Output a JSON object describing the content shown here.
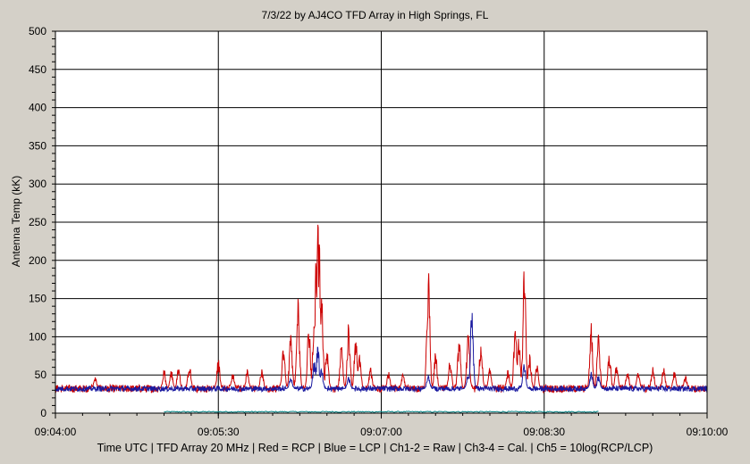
{
  "chart_data": {
    "type": "line",
    "title": "7/3/22  by  AJ4CO TFD Array  in  High Springs, FL",
    "xlabel": "Time UTC | TFD Array 20 MHz | Red = RCP | Blue = LCP | Ch1-2 = Raw | Ch3-4 = Cal. | Ch5 = 10log(RCP/LCP)",
    "ylabel": "Antenna Temp (kK)",
    "ylim": [
      0,
      500
    ],
    "yticks": [
      0,
      50,
      100,
      150,
      200,
      250,
      300,
      350,
      400,
      450,
      500
    ],
    "xlim_seconds": [
      0,
      360
    ],
    "xticks": [
      {
        "t": 0,
        "label": "09:04:00"
      },
      {
        "t": 90,
        "label": "09:05:30"
      },
      {
        "t": 180,
        "label": "09:07:00"
      },
      {
        "t": 270,
        "label": "09:08:30"
      },
      {
        "t": 360,
        "label": "09:10:00"
      }
    ],
    "grid": true,
    "colors": {
      "rcp": "#cc0000",
      "lcp": "#1a1aa0",
      "ch5": "#008080",
      "plot_bg": "#ffffff",
      "frame_bg": "#d4d0c8"
    },
    "baseline": {
      "rcp": 32,
      "lcp": 32
    },
    "series": [
      {
        "name": "Red = RCP",
        "spikes": [
          {
            "t": 22,
            "v": 48
          },
          {
            "t": 60,
            "v": 60
          },
          {
            "t": 64,
            "v": 58
          },
          {
            "t": 68,
            "v": 62
          },
          {
            "t": 74,
            "v": 66
          },
          {
            "t": 90,
            "v": 72
          },
          {
            "t": 98,
            "v": 54
          },
          {
            "t": 106,
            "v": 58
          },
          {
            "t": 114,
            "v": 60
          },
          {
            "t": 126,
            "v": 95
          },
          {
            "t": 130,
            "v": 108
          },
          {
            "t": 134,
            "v": 160
          },
          {
            "t": 140,
            "v": 120
          },
          {
            "t": 143,
            "v": 150
          },
          {
            "t": 144,
            "v": 210
          },
          {
            "t": 145,
            "v": 253
          },
          {
            "t": 146,
            "v": 230
          },
          {
            "t": 147,
            "v": 160
          },
          {
            "t": 150,
            "v": 90
          },
          {
            "t": 158,
            "v": 92
          },
          {
            "t": 162,
            "v": 120
          },
          {
            "t": 166,
            "v": 112
          },
          {
            "t": 168,
            "v": 80
          },
          {
            "t": 174,
            "v": 62
          },
          {
            "t": 184,
            "v": 55
          },
          {
            "t": 192,
            "v": 52
          },
          {
            "t": 206,
            "v": 197
          },
          {
            "t": 210,
            "v": 80
          },
          {
            "t": 218,
            "v": 72
          },
          {
            "t": 223,
            "v": 100
          },
          {
            "t": 228,
            "v": 110
          },
          {
            "t": 235,
            "v": 96
          },
          {
            "t": 240,
            "v": 60
          },
          {
            "t": 250,
            "v": 58
          },
          {
            "t": 254,
            "v": 120
          },
          {
            "t": 256,
            "v": 100
          },
          {
            "t": 259,
            "v": 192
          },
          {
            "t": 262,
            "v": 80
          },
          {
            "t": 266,
            "v": 64
          },
          {
            "t": 296,
            "v": 120
          },
          {
            "t": 300,
            "v": 110
          },
          {
            "t": 306,
            "v": 80
          },
          {
            "t": 310,
            "v": 64
          },
          {
            "t": 316,
            "v": 58
          },
          {
            "t": 322,
            "v": 55
          },
          {
            "t": 330,
            "v": 62
          },
          {
            "t": 336,
            "v": 60
          },
          {
            "t": 342,
            "v": 55
          },
          {
            "t": 348,
            "v": 50
          }
        ]
      },
      {
        "name": "Blue = LCP",
        "spikes": [
          {
            "t": 130,
            "v": 48
          },
          {
            "t": 143,
            "v": 70
          },
          {
            "t": 145,
            "v": 95
          },
          {
            "t": 147,
            "v": 60
          },
          {
            "t": 162,
            "v": 48
          },
          {
            "t": 206,
            "v": 50
          },
          {
            "t": 228,
            "v": 52
          },
          {
            "t": 230,
            "v": 138
          },
          {
            "t": 259,
            "v": 65
          },
          {
            "t": 296,
            "v": 55
          },
          {
            "t": 300,
            "v": 50
          }
        ]
      }
    ]
  }
}
